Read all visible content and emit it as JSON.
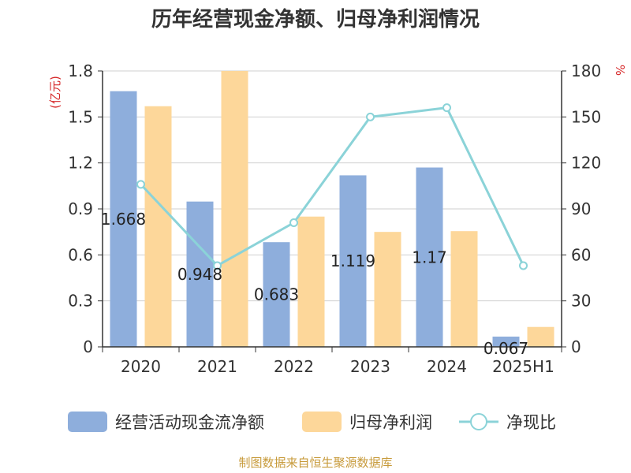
{
  "chart_data": {
    "type": "bar",
    "title": "历年经营现金净额、归母净利润情况",
    "categories": [
      "2020",
      "2021",
      "2022",
      "2023",
      "2024",
      "2025H1"
    ],
    "series": [
      {
        "name": "经营活动现金流净额",
        "type": "bar",
        "axis": "left",
        "color": "#8eaedc",
        "values": [
          1.668,
          0.948,
          0.683,
          1.119,
          1.17,
          0.067
        ],
        "labels": [
          "1.668",
          "0.948",
          "0.683",
          "1.119",
          "1.17",
          "0.067"
        ]
      },
      {
        "name": "归母净利润",
        "type": "bar",
        "axis": "left",
        "color": "#fdd79a",
        "values": [
          1.57,
          1.8,
          0.85,
          0.75,
          0.755,
          0.13
        ]
      },
      {
        "name": "净现比",
        "type": "line",
        "axis": "right",
        "color": "#8bd3d8",
        "values": [
          106,
          53,
          81,
          150,
          156,
          53
        ]
      }
    ],
    "yleft": {
      "unit": "(亿元)",
      "ylim": [
        0,
        1.8
      ],
      "ticks": [
        "0",
        "0.3",
        "0.6",
        "0.9",
        "1.2",
        "1.5",
        "1.8"
      ]
    },
    "yright": {
      "unit": "%",
      "ylim": [
        0,
        180
      ],
      "ticks": [
        "0",
        "30",
        "60",
        "90",
        "120",
        "150",
        "180"
      ]
    },
    "grid": true,
    "legend_position": "bottom"
  },
  "footer": {
    "source": "制图数据来自恒生聚源数据库"
  }
}
